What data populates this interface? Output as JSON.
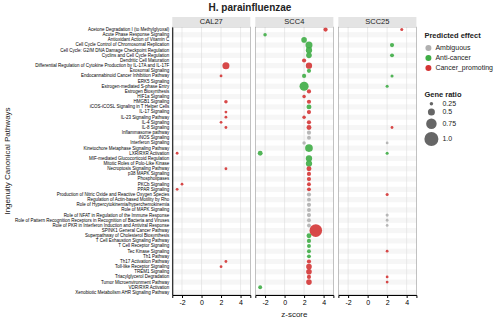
{
  "chart_data": {
    "type": "scatter",
    "title": "H. parainfluenzae",
    "xlabel": "z-score",
    "ylabel": "Ingenuity Canonical Pathways",
    "xlim": [
      -3,
      5
    ],
    "xticks": [
      -2,
      0,
      2,
      4
    ],
    "grid": true,
    "legend": "right",
    "legend_title": "Predicted effect",
    "series": [
      {
        "name": "Ambiguous",
        "color": "#b0b0b0"
      },
      {
        "name": "Anti-cancer",
        "color": "#3fad46"
      },
      {
        "name": "Cancer_promoting",
        "color": "#d43535"
      }
    ],
    "size_legend": {
      "title": "Gene ratio",
      "values": [
        0.25,
        0.5,
        0.75,
        {
          "value": 1,
          "label": "1.0"
        }
      ]
    },
    "categories": [
      "Acetone Degradation I (to Methylglyoxal)",
      "Acute Phase Response Signaling",
      "Antioxidant Action of Vitamin C",
      "Cell Cycle Control of Chromosomal Replication",
      "Cell Cycle: G2/M DNA Damage Checkpoint Regulation",
      "Cyclins and Cell Cycle Regulation",
      "Dendritic Cell Maturation",
      "Differential Regulation of Cytokine Production by IL-17A and IL-17F",
      "Exosomal Signaling",
      "Endocannabinoid Cancer Inhibition Pathway",
      "ERK5 Signaling",
      "Estrogen-mediated S-phase Entry",
      "Estrogen Biosynthesis",
      "HIF1a Signaling",
      "HMGB1 Signaling",
      "iCOS-iCOSL Signaling in T Helper Cells",
      "IL-17 Signaling",
      "IL-23 Signaling Pathway",
      "IL-4 Signaling",
      "IL-8 Signaling",
      "Inflammasome pathway",
      "iNOS Signaling",
      "Interferon Signaling",
      "Kinetochore Metaphase Signaling Pathway",
      "LXR/RXR Activation",
      "MIF-mediated Glucocorticoid Regulation",
      "Mitotic Roles of Polo-Like Kinase",
      "Necroptosis Signaling Pathway",
      "p38 MAPK Signaling",
      "Phospholipases",
      "PKCb Signaling",
      "PPAR Signaling",
      "Production of Nitric Oxide and Reactive Oxygen Species",
      "Regulation of Actin-based Motility by Rho",
      "Role of Hypercytokinemia/hyperchemokinemia",
      "Role of MAPK Signaling",
      "Role of NFAT in Regulation of the Immune Response",
      "Role of Pattern Recognition Receptors in Recognition of Bacteria and Viruses",
      "Role of PKR in Interferon Induction and Antiviral Response",
      "SPINK1 General Cancer Pathway",
      "Superpathway of Cholesterol Biosynthesis",
      "T Cell Exhaustion Signaling Pathway",
      "T Cell Receptor Signaling",
      "Tec Kinase Signaling",
      "Th1 Pathway",
      "Th17 Activation Pathway",
      "Toll-like Receptor Signaling",
      "TREM1 Signaling",
      "Triacylglycerol Degradation",
      "Tumor Microenvironment Pathway",
      "VDR/RXR Activation",
      "Xenobiotic Metabolism AHR Signaling Pathway"
    ],
    "panels": [
      {
        "title": "CAL27",
        "categories": [
          "Differential Regulation of Cytokine Production by IL-17A and IL-17F",
          "Endocannabinoid Cancer Inhibition Pathway",
          "HMGB1 Signaling",
          "IL-17 Signaling",
          "IL-23 Signaling Pathway",
          "IL-4 Signaling",
          "IL-8 Signaling",
          "LXR/RXR Activation",
          "Necroptosis Signaling Pathway",
          "PKCb Signaling",
          "PPAR Signaling",
          "Th17 Activation Pathway",
          "Toll-like Receptor Signaling"
        ],
        "values": [
          2.5,
          2.0,
          2.5,
          2.5,
          2.5,
          2.0,
          2.5,
          -2.5,
          2.5,
          -2.0,
          -2.5,
          2.5,
          2.0
        ],
        "sizes": [
          0.5,
          0.2,
          0.25,
          0.2,
          0.2,
          0.2,
          0.2,
          0.2,
          0.2,
          0.2,
          0.2,
          0.2,
          0.2
        ],
        "effects": [
          "Cancer_promoting",
          "Cancer_promoting",
          "Cancer_promoting",
          "Cancer_promoting",
          "Cancer_promoting",
          "Cancer_promoting",
          "Cancer_promoting",
          "Cancer_promoting",
          "Cancer_promoting",
          "Cancer_promoting",
          "Cancer_promoting",
          "Cancer_promoting",
          "Cancer_promoting"
        ]
      },
      {
        "title": "SCC4",
        "categories": [
          "Acetone Degradation I (to Methylglyoxal)",
          "Acute Phase Response Signaling",
          "Antioxidant Action of Vitamin C",
          "Cell Cycle Control of Chromosomal Replication",
          "Cell Cycle: G2/M DNA Damage Checkpoint Regulation",
          "Cyclins and Cell Cycle Regulation",
          "Dendritic Cell Maturation",
          "Differential Regulation of Cytokine Production by IL-17A and IL-17F",
          "Exosomal Signaling",
          "Endocannabinoid Cancer Inhibition Pathway",
          "Estrogen-mediated S-phase Entry",
          "Estrogen Biosynthesis",
          "HIF1a Signaling",
          "HMGB1 Signaling",
          "iCOS-iCOSL Signaling in T Helper Cells",
          "IL-17 Signaling",
          "IL-23 Signaling Pathway",
          "IL-4 Signaling",
          "IL-8 Signaling",
          "Inflammasome pathway",
          "iNOS Signaling",
          "Interferon Signaling",
          "Kinetochore Metaphase Signaling Pathway",
          "LXR/RXR Activation",
          "MIF-mediated Glucocorticoid Regulation",
          "Mitotic Roles of Polo-Like Kinase",
          "Necroptosis Signaling Pathway",
          "p38 MAPK Signaling",
          "Phospholipases",
          "PKCb Signaling",
          "PPAR Signaling",
          "Production of Nitric Oxide and Reactive Oxygen Species",
          "Regulation of Actin-based Motility by Rho",
          "Role of Hypercytokinemia/hyperchemokinemia",
          "Role of MAPK Signaling",
          "Role of NFAT in Regulation of the Immune Response",
          "Role of Pattern Recognition Receptors in Recognition of Bacteria and Viruses",
          "Role of PKR in Interferon Induction and Antiviral Response",
          "SPINK1 General Cancer Pathway",
          "Superpathway of Cholesterol Biosynthesis",
          "T Cell Exhaustion Signaling Pathway",
          "T Cell Receptor Signaling",
          "Tec Kinase Signaling",
          "Th1 Pathway",
          "Th17 Activation Pathway",
          "Toll-like Receptor Signaling",
          "TREM1 Signaling",
          "Triacylglycerol Degradation",
          "Tumor Microenvironment Pathway",
          "VDR/RXR Activation"
        ],
        "values": [
          4.2,
          -2.0,
          2.0,
          2.5,
          2.5,
          2.5,
          2.0,
          2.5,
          2.5,
          2.0,
          2.0,
          2.5,
          2.0,
          2.5,
          2.5,
          2.5,
          2.0,
          2.5,
          2.5,
          2.5,
          2.5,
          2.0,
          2.5,
          -2.5,
          2.5,
          2.5,
          2.5,
          2.5,
          2.5,
          2.5,
          2.5,
          2.5,
          2.5,
          2.5,
          2.5,
          2.5,
          2.5,
          2.5,
          3.2,
          2.5,
          2.5,
          2.5,
          2.5,
          2.5,
          2.5,
          2.5,
          2.5,
          2.5,
          2.5,
          -2.5
        ],
        "sizes": [
          0.3,
          0.25,
          0.4,
          0.5,
          0.45,
          0.4,
          0.3,
          0.45,
          0.3,
          0.3,
          0.65,
          0.3,
          0.25,
          0.3,
          0.35,
          0.3,
          0.25,
          0.3,
          0.35,
          0.3,
          0.28,
          0.25,
          0.55,
          0.35,
          0.45,
          0.45,
          0.35,
          0.3,
          0.3,
          0.28,
          0.28,
          0.3,
          0.28,
          0.3,
          0.28,
          0.3,
          0.28,
          0.28,
          0.9,
          0.35,
          0.3,
          0.28,
          0.28,
          0.28,
          0.3,
          0.4,
          0.4,
          0.3,
          0.4,
          0.28
        ],
        "effects": [
          "Cancer_promoting",
          "Anti-cancer",
          "Anti-cancer",
          "Anti-cancer",
          "Anti-cancer",
          "Anti-cancer",
          "Cancer_promoting",
          "Cancer_promoting",
          "Anti-cancer",
          "Anti-cancer",
          "Anti-cancer",
          "Cancer_promoting",
          "Cancer_promoting",
          "Cancer_promoting",
          "Anti-cancer",
          "Cancer_promoting",
          "Cancer_promoting",
          "Cancer_promoting",
          "Cancer_promoting",
          "Ambiguous",
          "Ambiguous",
          "Ambiguous",
          "Anti-cancer",
          "Anti-cancer",
          "Anti-cancer",
          "Anti-cancer",
          "Cancer_promoting",
          "Cancer_promoting",
          "Cancer_promoting",
          "Cancer_promoting",
          "Cancer_promoting",
          "Ambiguous",
          "Ambiguous",
          "Ambiguous",
          "Ambiguous",
          "Ambiguous",
          "Ambiguous",
          "Ambiguous",
          "Cancer_promoting",
          "Anti-cancer",
          "Anti-cancer",
          "Anti-cancer",
          "Anti-cancer",
          "Anti-cancer",
          "Cancer_promoting",
          "Cancer_promoting",
          "Cancer_promoting",
          "Cancer_promoting",
          "Cancer_promoting",
          "Anti-cancer"
        ]
      },
      {
        "title": "SCC25",
        "categories": [
          "Acetone Degradation I (to Methylglyoxal)",
          "Cell Cycle Control of Chromosomal Replication",
          "Cyclins and Cell Cycle Regulation",
          "Endocannabinoid Cancer Inhibition Pathway",
          "Estrogen-mediated S-phase Entry",
          "IL-8 Signaling",
          "Interferon Signaling",
          "LXR/RXR Activation",
          "Production of Nitric Oxide and Reactive Oxygen Species",
          "Role of NFAT in Regulation of the Immune Response",
          "Role of Pattern Recognition Receptors in Recognition of Bacteria and Viruses",
          "Role of PKR in Interferon Induction and Antiviral Response",
          "Tec Kinase Signaling",
          "Triacylglycerol Degradation",
          "Tumor Microenvironment Pathway"
        ],
        "values": [
          3.5,
          2.5,
          2.5,
          2.5,
          2.0,
          2.5,
          2.0,
          2.0,
          2.0,
          2.0,
          2.0,
          2.0,
          2.0,
          2.0,
          2.0
        ],
        "sizes": [
          0.22,
          0.3,
          0.28,
          0.22,
          0.22,
          0.2,
          0.2,
          0.22,
          0.22,
          0.22,
          0.2,
          0.2,
          0.2,
          0.2,
          0.2
        ],
        "effects": [
          "Cancer_promoting",
          "Anti-cancer",
          "Anti-cancer",
          "Anti-cancer",
          "Anti-cancer",
          "Cancer_promoting",
          "Ambiguous",
          "Anti-cancer",
          "Cancer_promoting",
          "Ambiguous",
          "Ambiguous",
          "Ambiguous",
          "Cancer_promoting",
          "Cancer_promoting",
          "Cancer_promoting"
        ]
      }
    ]
  }
}
